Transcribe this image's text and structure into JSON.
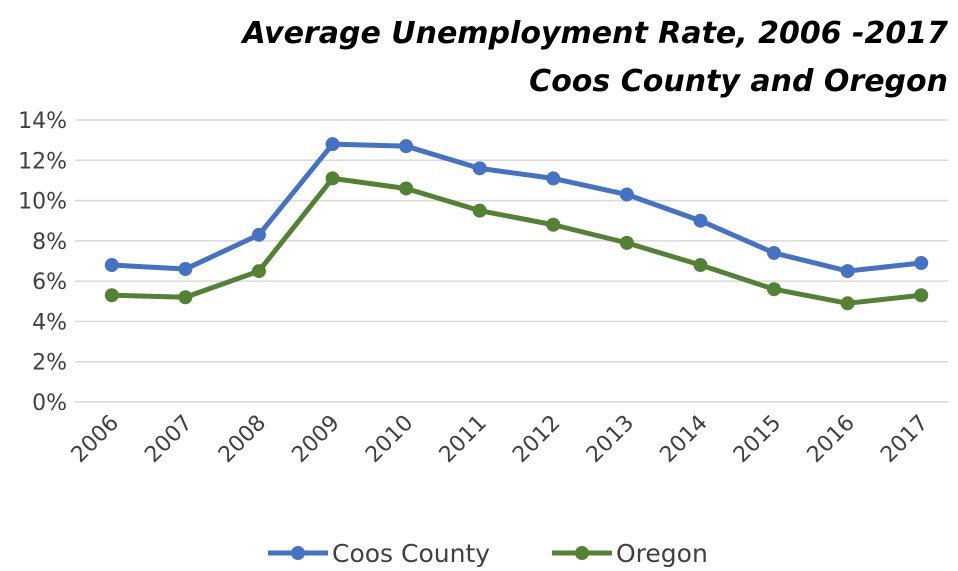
{
  "chart_data": {
    "type": "line",
    "title": "Average Unemployment Rate, 2006 -2017",
    "subtitle": "Coos County and Oregon",
    "xlabel": "",
    "ylabel": "",
    "categories": [
      "2006",
      "2007",
      "2008",
      "2009",
      "2010",
      "2011",
      "2012",
      "2013",
      "2014",
      "2015",
      "2016",
      "2017"
    ],
    "series": [
      {
        "name": "Coos County",
        "color": "#4472C4",
        "values": [
          6.8,
          6.6,
          8.3,
          12.8,
          12.7,
          11.6,
          11.1,
          10.3,
          9.0,
          7.4,
          6.5,
          6.9
        ]
      },
      {
        "name": "Oregon",
        "color": "#548235",
        "values": [
          5.3,
          5.2,
          6.5,
          11.1,
          10.6,
          9.5,
          8.8,
          7.9,
          6.8,
          5.6,
          4.9,
          5.3
        ]
      }
    ],
    "ylim": [
      0,
      14
    ],
    "y_ticks": [
      "0%",
      "2%",
      "4%",
      "6%",
      "8%",
      "10%",
      "12%",
      "14%"
    ],
    "grid": true,
    "legend_position": "bottom"
  }
}
